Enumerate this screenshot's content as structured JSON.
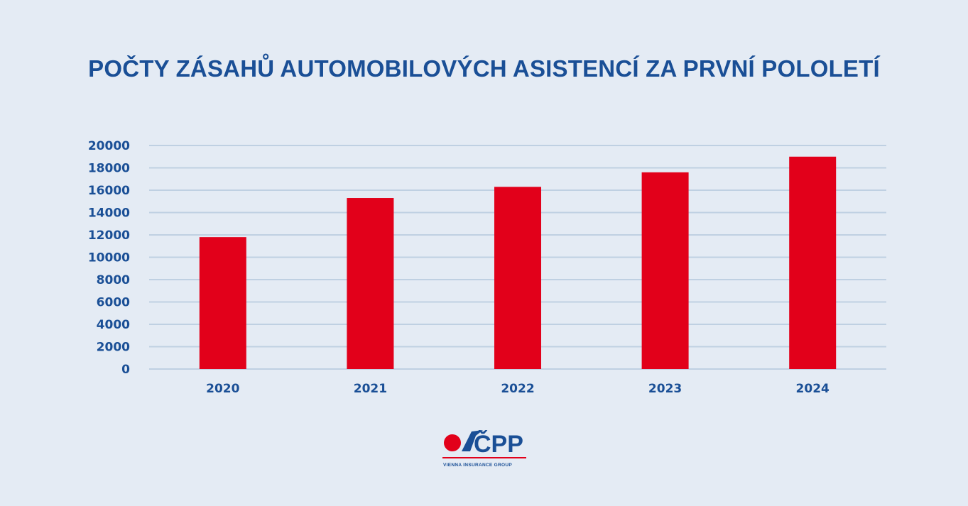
{
  "colors": {
    "background": "#e4ebf4",
    "text": "#1a4f96",
    "bar": "#e2001a",
    "grid": "#bfd0e2"
  },
  "chart_data": {
    "type": "bar",
    "title": "POČTY ZÁSAHŮ AUTOMOBILOVÝCH ASISTENCÍ ZA PRVNÍ POLOLETÍ",
    "categories": [
      "2020",
      "2021",
      "2022",
      "2023",
      "2024"
    ],
    "values": [
      11800,
      15300,
      16300,
      17600,
      19000
    ],
    "yticks": [
      "0",
      "2000",
      "4000",
      "6000",
      "8000",
      "10000",
      "12000",
      "14000",
      "16000",
      "18000",
      "20000"
    ],
    "ylim": [
      0,
      20000
    ],
    "grid": true,
    "legend": "none"
  },
  "logo": {
    "name": "ČPP",
    "tagline": "VIENNA INSURANCE GROUP"
  }
}
